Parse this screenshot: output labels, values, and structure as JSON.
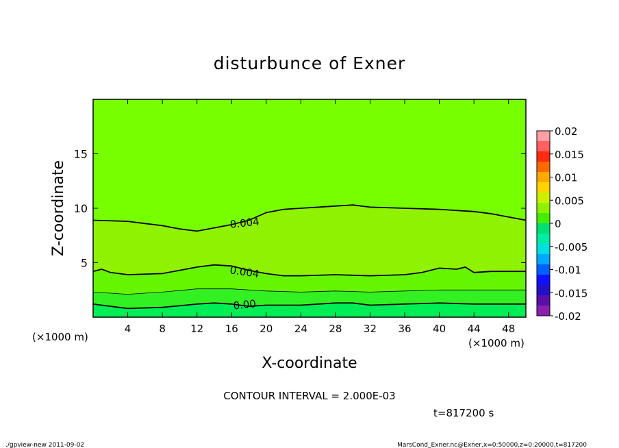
{
  "chart_data": {
    "type": "contour",
    "title": "disturbunce of Exner",
    "xlabel": "X-coordinate",
    "ylabel": "Z-coordinate",
    "x_unit_left": "(×1000 m)",
    "x_unit_right": "(×1000 m)",
    "xlim": [
      0,
      50
    ],
    "ylim": [
      0,
      20
    ],
    "x_ticks": [
      4,
      8,
      12,
      16,
      20,
      24,
      28,
      32,
      36,
      40,
      44,
      48
    ],
    "y_ticks": [
      5,
      10,
      15
    ],
    "contour_labels": [
      {
        "text": "0.004",
        "x": 17.5,
        "y": 8.7
      },
      {
        "text": "0.004",
        "x": 17.5,
        "y": 4.2
      },
      {
        "text": "0.00",
        "x": 17.5,
        "y": 1.2
      }
    ],
    "contour_lines": [
      {
        "level": 0.004,
        "weight": "major",
        "points": [
          [
            0,
            8.9
          ],
          [
            4,
            8.8
          ],
          [
            6,
            8.6
          ],
          [
            8,
            8.4
          ],
          [
            10,
            8.1
          ],
          [
            12,
            7.9
          ],
          [
            14,
            8.2
          ],
          [
            16,
            8.5
          ],
          [
            18,
            8.9
          ],
          [
            20,
            9.6
          ],
          [
            22,
            9.9
          ],
          [
            24,
            10.0
          ],
          [
            28,
            10.2
          ],
          [
            30,
            10.3
          ],
          [
            32,
            10.1
          ],
          [
            36,
            10.0
          ],
          [
            40,
            9.9
          ],
          [
            44,
            9.7
          ],
          [
            46,
            9.5
          ],
          [
            48,
            9.2
          ],
          [
            50,
            8.9
          ]
        ]
      },
      {
        "level": 0.004,
        "weight": "major",
        "points": [
          [
            0,
            4.2
          ],
          [
            1,
            4.4
          ],
          [
            2,
            4.1
          ],
          [
            4,
            3.9
          ],
          [
            8,
            4.0
          ],
          [
            10,
            4.3
          ],
          [
            12,
            4.6
          ],
          [
            14,
            4.8
          ],
          [
            16,
            4.7
          ],
          [
            18,
            4.3
          ],
          [
            20,
            4.0
          ],
          [
            22,
            3.8
          ],
          [
            24,
            3.8
          ],
          [
            28,
            3.9
          ],
          [
            32,
            3.8
          ],
          [
            36,
            3.9
          ],
          [
            38,
            4.1
          ],
          [
            40,
            4.5
          ],
          [
            42,
            4.4
          ],
          [
            43,
            4.6
          ],
          [
            44,
            4.1
          ],
          [
            46,
            4.2
          ],
          [
            50,
            4.2
          ]
        ]
      },
      {
        "level": 0.002,
        "weight": "minor",
        "points": [
          [
            0,
            2.3
          ],
          [
            4,
            2.1
          ],
          [
            8,
            2.3
          ],
          [
            12,
            2.6
          ],
          [
            16,
            2.6
          ],
          [
            20,
            2.4
          ],
          [
            24,
            2.3
          ],
          [
            28,
            2.4
          ],
          [
            32,
            2.3
          ],
          [
            36,
            2.4
          ],
          [
            40,
            2.5
          ],
          [
            44,
            2.5
          ],
          [
            50,
            2.5
          ]
        ]
      },
      {
        "level": 0.0,
        "weight": "major",
        "points": [
          [
            0,
            1.2
          ],
          [
            2,
            1.0
          ],
          [
            4,
            0.8
          ],
          [
            8,
            0.9
          ],
          [
            12,
            1.2
          ],
          [
            14,
            1.3
          ],
          [
            16,
            1.2
          ],
          [
            18,
            1.0
          ],
          [
            20,
            1.1
          ],
          [
            24,
            1.1
          ],
          [
            28,
            1.3
          ],
          [
            30,
            1.3
          ],
          [
            32,
            1.1
          ],
          [
            36,
            1.2
          ],
          [
            40,
            1.3
          ],
          [
            44,
            1.2
          ],
          [
            50,
            1.2
          ]
        ]
      }
    ],
    "fill_bands": [
      {
        "color": "#00ee55",
        "from_line": null,
        "to_line": 3
      },
      {
        "color": "#33f022",
        "from_line": 3,
        "to_line": 2
      },
      {
        "color": "#66f500",
        "from_line": 2,
        "to_line": 1
      },
      {
        "color": "#8ef200",
        "from_line": 1,
        "to_line": 0
      },
      {
        "color": "#77ff00",
        "from_line": 0,
        "to_line": null
      }
    ],
    "colorbar": {
      "labels": [
        "0.02",
        "0.015",
        "0.01",
        "0.005",
        "0",
        "-0.005",
        "-0.01",
        "-0.015",
        "-0.02"
      ],
      "colors": [
        "#ff9fa6",
        "#ff6060",
        "#ff2a10",
        "#ff6a00",
        "#ffaa00",
        "#ffd400",
        "#ccf000",
        "#8ef200",
        "#44ee00",
        "#00e070",
        "#00eca8",
        "#00e0e0",
        "#00a8ff",
        "#0060ff",
        "#1010ff",
        "#2010c8",
        "#5a10a8",
        "#8a20b0"
      ]
    }
  },
  "annotations": {
    "contour_interval": "CONTOUR INTERVAL = 2.000E-03",
    "time": "t=817200 s",
    "footer_left": "./gpview-new  2011-09-02",
    "footer_right": "MarsCond_Exner.nc@Exner,x=0:50000,z=0:20000,t=817200"
  }
}
